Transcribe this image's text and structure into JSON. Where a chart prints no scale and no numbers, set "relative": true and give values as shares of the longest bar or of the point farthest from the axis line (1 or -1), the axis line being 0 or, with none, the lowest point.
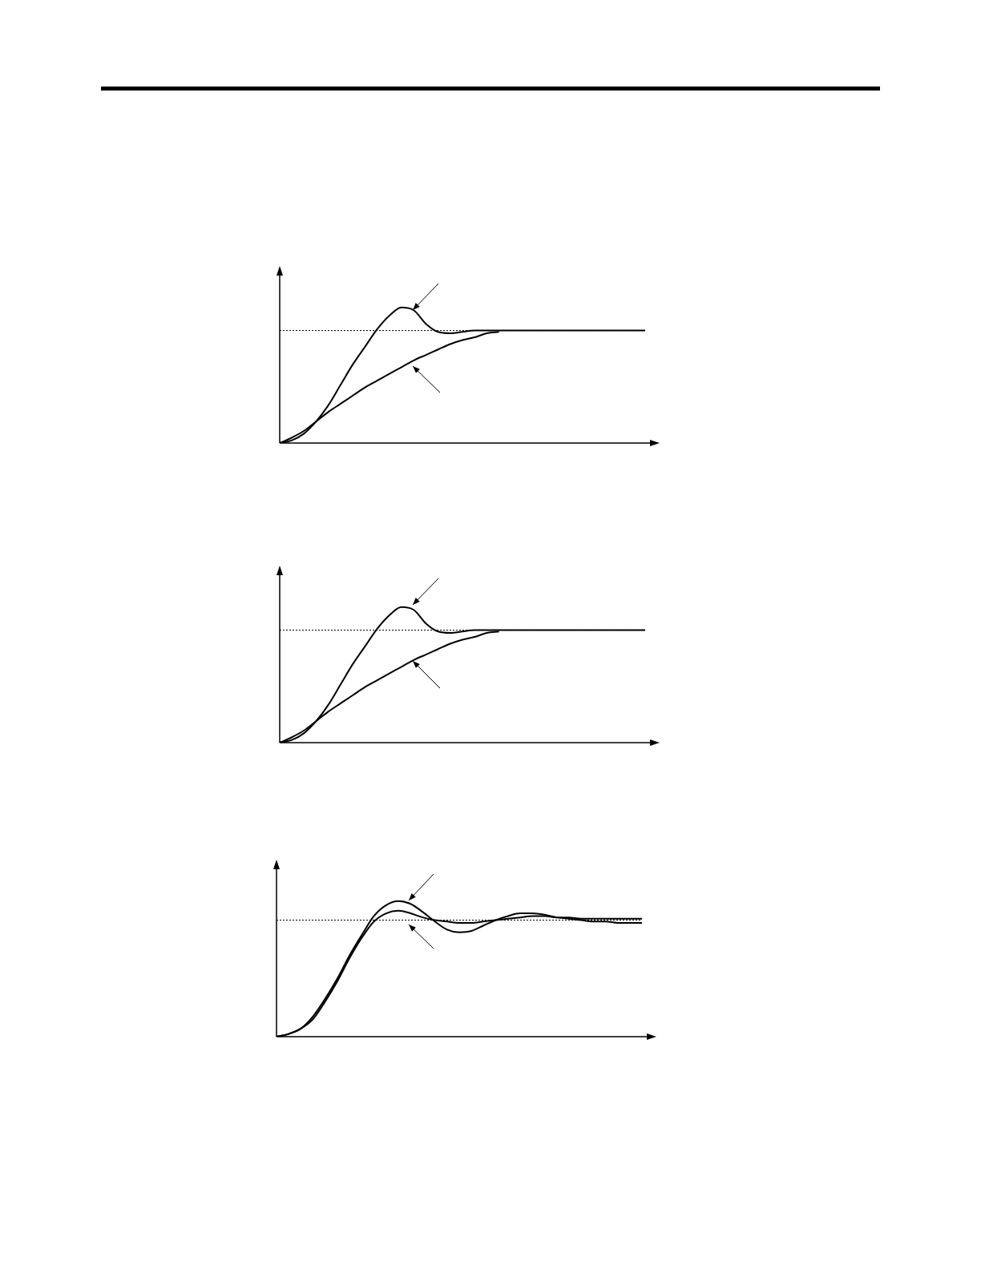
{
  "chart_data": [
    {
      "type": "line",
      "relative": true,
      "categories": [
        null,
        null,
        null,
        null,
        null,
        null,
        null,
        null,
        null,
        null,
        null,
        null,
        null,
        null,
        null,
        null,
        null,
        null,
        null,
        null,
        null,
        null,
        null,
        null,
        null,
        null,
        null,
        null,
        null,
        null,
        null
      ],
      "series": [
        {
          "color": "#000000",
          "values": [
            0,
            0.02,
            0.07,
            0.16,
            0.28,
            0.43,
            0.58,
            0.71,
            0.84,
            0.94,
            1,
            0.98,
            0.88,
            0.82,
            0.81,
            0.82,
            0.83,
            0.83,
            0.83,
            0.83,
            0.83,
            0.83,
            0.83,
            0.83,
            0.83,
            0.83,
            0.83,
            0.83,
            0.83,
            0.83,
            0.83
          ]
        },
        {
          "color": "#000000",
          "values": [
            0,
            0.04,
            0.09,
            0.16,
            0.23,
            0.29,
            0.35,
            0.41,
            0.46,
            0.51,
            0.56,
            0.61,
            0.65,
            0.69,
            0.73,
            0.76,
            0.78,
            0.81,
            0.82,
            null,
            null,
            null,
            null,
            null,
            null,
            null,
            null,
            null,
            null,
            null,
            null
          ]
        }
      ],
      "ref_lines": [
        {
          "axis": "y",
          "value": 0.83,
          "line_style": "dotted",
          "color": "#000000"
        }
      ]
    },
    {
      "type": "line",
      "relative": true,
      "categories": [
        null,
        null,
        null,
        null,
        null,
        null,
        null,
        null,
        null,
        null,
        null,
        null,
        null,
        null,
        null,
        null,
        null,
        null,
        null,
        null,
        null,
        null,
        null,
        null,
        null,
        null,
        null,
        null,
        null,
        null,
        null
      ],
      "series": [
        {
          "color": "#000000",
          "values": [
            0,
            0.02,
            0.07,
            0.16,
            0.28,
            0.43,
            0.58,
            0.71,
            0.84,
            0.94,
            1,
            0.98,
            0.88,
            0.82,
            0.81,
            0.82,
            0.83,
            0.83,
            0.83,
            0.83,
            0.83,
            0.83,
            0.83,
            0.83,
            0.83,
            0.83,
            0.83,
            0.83,
            0.83,
            0.83,
            0.83
          ]
        },
        {
          "color": "#000000",
          "values": [
            0,
            0.04,
            0.09,
            0.16,
            0.23,
            0.29,
            0.35,
            0.41,
            0.46,
            0.51,
            0.56,
            0.61,
            0.65,
            0.69,
            0.73,
            0.76,
            0.78,
            0.81,
            0.82,
            null,
            null,
            null,
            null,
            null,
            null,
            null,
            null,
            null,
            null,
            null,
            null
          ]
        }
      ],
      "ref_lines": [
        {
          "axis": "y",
          "value": 0.83,
          "line_style": "dotted",
          "color": "#000000"
        }
      ]
    },
    {
      "type": "line",
      "relative": true,
      "categories": [
        null,
        null,
        null,
        null,
        null,
        null,
        null,
        null,
        null,
        null,
        null,
        null,
        null,
        null,
        null,
        null,
        null,
        null,
        null,
        null,
        null,
        null,
        null,
        null,
        null,
        null,
        null,
        null,
        null,
        null,
        null
      ],
      "series": [
        {
          "color": "#000000",
          "values": [
            0,
            0.02,
            0.06,
            0.15,
            0.28,
            0.43,
            0.6,
            0.75,
            0.89,
            0.97,
            1,
            0.98,
            0.92,
            0.85,
            0.79,
            0.77,
            0.78,
            0.82,
            0.86,
            0.89,
            0.91,
            0.91,
            0.9,
            0.88,
            0.87,
            0.86,
            0.85,
            0.85,
            0.84,
            0.84,
            0.84
          ]
        },
        {
          "color": "#000000",
          "values": [
            0,
            0.02,
            0.06,
            0.13,
            0.26,
            0.41,
            0.58,
            0.73,
            0.85,
            0.91,
            0.93,
            0.91,
            0.88,
            0.86,
            0.85,
            0.84,
            0.84,
            0.85,
            0.86,
            0.87,
            0.88,
            0.89,
            0.89,
            0.88,
            0.88,
            0.87,
            0.87,
            0.87,
            0.87,
            0.87,
            0.87
          ]
        }
      ],
      "ref_lines": [
        {
          "axis": "y",
          "value": 0.86,
          "line_style": "dotted",
          "color": "#000000"
        }
      ]
    }
  ]
}
